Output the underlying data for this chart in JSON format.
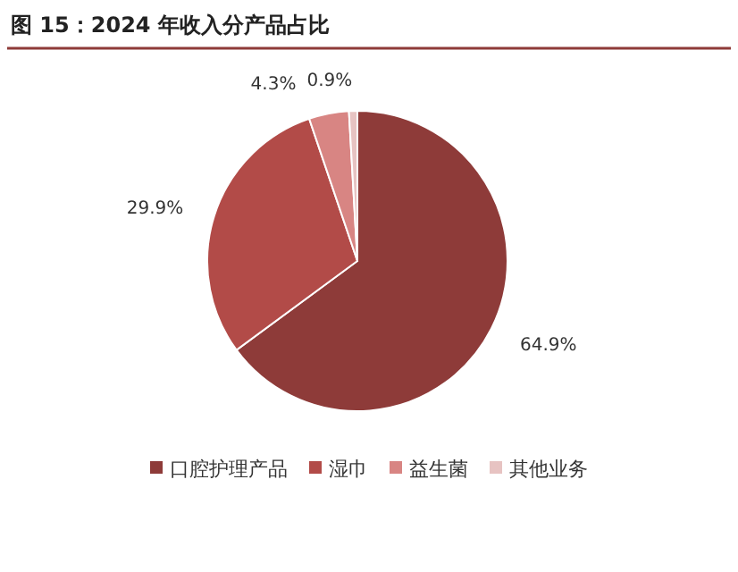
{
  "chart_data": {
    "type": "pie",
    "title": "图 15：2024 年收入分产品占比",
    "categories": [
      "口腔护理产品",
      "湿巾",
      "益生菌",
      "其他业务"
    ],
    "values": [
      64.9,
      29.9,
      4.3,
      0.9
    ],
    "colors": [
      "#8e3b39",
      "#b24b48",
      "#d88583",
      "#e7c3c2"
    ],
    "value_labels": [
      "64.9%",
      "29.9%",
      "4.3%",
      "0.9%"
    ],
    "legend": "bottom"
  }
}
